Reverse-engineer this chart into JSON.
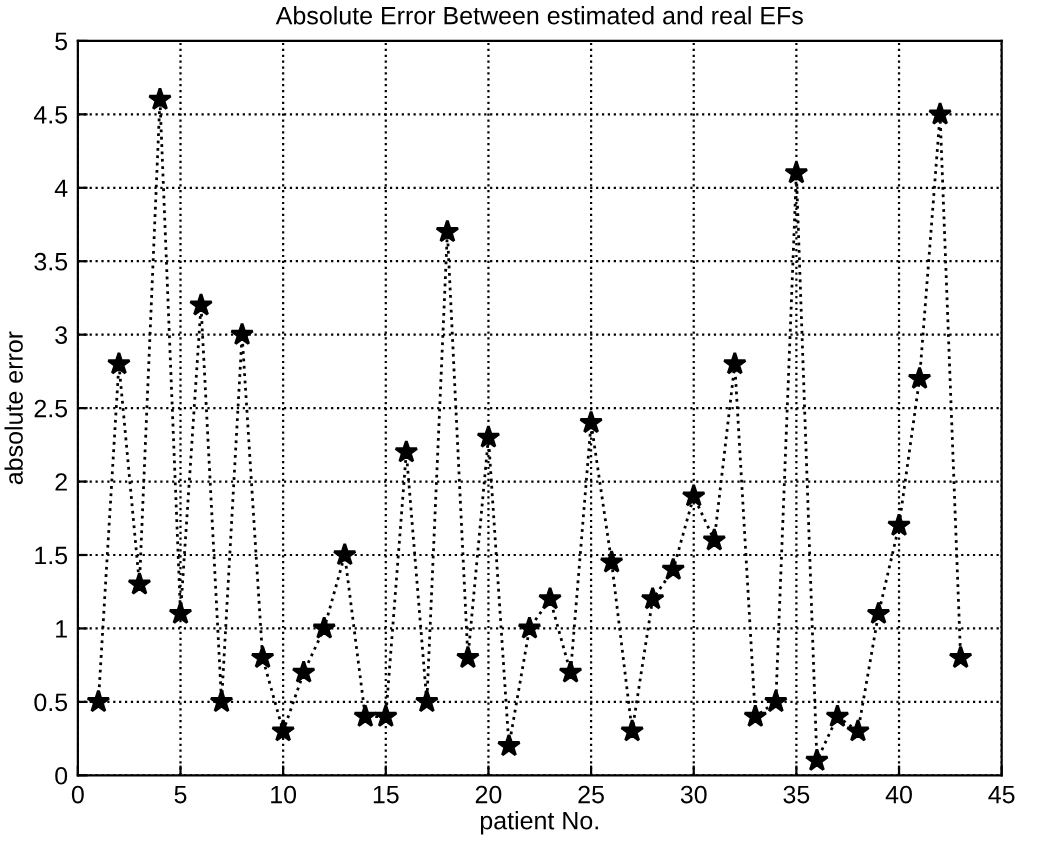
{
  "chart_data": {
    "type": "line",
    "title": "Absolute Error Between estimated and real EFs",
    "xlabel": "patient No.",
    "ylabel": "absolute error",
    "x": [
      1,
      2,
      3,
      4,
      5,
      6,
      7,
      8,
      9,
      10,
      11,
      12,
      13,
      14,
      15,
      16,
      17,
      18,
      19,
      20,
      21,
      22,
      23,
      24,
      25,
      26,
      27,
      28,
      29,
      30,
      31,
      32,
      33,
      34,
      35,
      36,
      37,
      38,
      39,
      40,
      41,
      42,
      43
    ],
    "series": [
      {
        "color": "#000000",
        "values": [
          0.5,
          2.8,
          1.3,
          4.6,
          1.1,
          3.2,
          0.5,
          3.0,
          0.8,
          0.3,
          0.7,
          1.0,
          1.5,
          0.4,
          0.4,
          2.2,
          0.5,
          3.7,
          0.8,
          2.3,
          0.2,
          1.0,
          1.2,
          0.7,
          2.4,
          1.45,
          0.3,
          1.2,
          1.4,
          1.9,
          1.6,
          2.8,
          0.4,
          0.5,
          4.1,
          0.1,
          0.4,
          0.3,
          1.1,
          1.7,
          2.7,
          4.5,
          0.8
        ]
      }
    ],
    "xlim": [
      0,
      45
    ],
    "xticks": [
      0,
      5,
      10,
      15,
      20,
      25,
      30,
      35,
      40,
      45
    ],
    "ylim": [
      0,
      5
    ],
    "yticks": [
      0,
      0.5,
      1,
      1.5,
      2,
      2.5,
      3,
      3.5,
      4,
      4.5,
      5
    ],
    "grid": true,
    "marker": "star",
    "line_style": "dotted"
  }
}
